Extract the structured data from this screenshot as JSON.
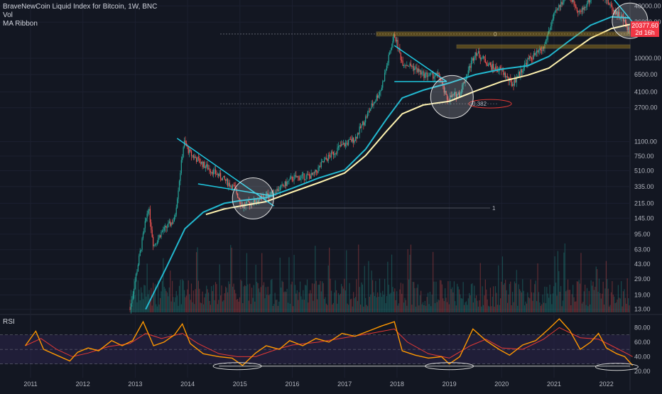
{
  "legend": {
    "symbol": "BraveNewCoin Liquid Index for Bitcoin, 1W, BNC",
    "volume": "Vol",
    "ma_ribbon": "MA Ribbon"
  },
  "rsi_panel": {
    "label": "RSI"
  },
  "last_price": {
    "value": "20377.60",
    "countdown": "2d 16h"
  },
  "colors": {
    "background": "#131722",
    "up_candle": "#26a69a",
    "down_candle": "#ef5350",
    "ma_fast": "#22b8cf",
    "ma_slow": "#fff3b0",
    "rsi_line": "#ff9800",
    "rsi_ma": "#e53935",
    "rsi_band": "#2a2348",
    "fib_line": "#b2b5be",
    "triangle": "#1fc8e0",
    "price_tag": "#f23645"
  },
  "annotations": {
    "fib_labels": [
      "0",
      "0.382",
      "1"
    ],
    "highlight_circles": 4,
    "rsi_circles": 3
  },
  "chart_data": {
    "type": "candlestick",
    "title": "BraveNewCoin Liquid Index for Bitcoin, 1W, BNC",
    "scale": "log",
    "x_ticks": [
      "2011",
      "2012",
      "2013",
      "2014",
      "2015",
      "2016",
      "2017",
      "2018",
      "2019",
      "2020",
      "2021",
      "2022"
    ],
    "y_ticks": [
      "40000.00",
      "26000.00",
      "10000.00",
      "6500.00",
      "4100.00",
      "2700.00",
      "1100.00",
      "750.00",
      "510.00",
      "335.00",
      "215.00",
      "145.00",
      "95.00",
      "63.00",
      "43.00",
      "29.00",
      "19.00",
      "13.00"
    ],
    "ylim": [
      12,
      45000
    ],
    "rsi_ticks": [
      "80.00",
      "60.00",
      "40.00",
      "20.00"
    ],
    "rsi_range": [
      15,
      95
    ],
    "rsi_band": [
      30,
      70
    ],
    "price_path": [
      [
        2012.9,
        13
      ],
      [
        2013.25,
        200
      ],
      [
        2013.35,
        70
      ],
      [
        2013.5,
        100
      ],
      [
        2013.75,
        140
      ],
      [
        2013.93,
        1100
      ],
      [
        2014.05,
        800
      ],
      [
        2014.3,
        600
      ],
      [
        2014.6,
        450
      ],
      [
        2014.9,
        320
      ],
      [
        2015.05,
        200
      ],
      [
        2015.5,
        260
      ],
      [
        2015.8,
        330
      ],
      [
        2016.0,
        420
      ],
      [
        2016.4,
        450
      ],
      [
        2016.6,
        650
      ],
      [
        2016.9,
        950
      ],
      [
        2017.2,
        1200
      ],
      [
        2017.5,
        2700
      ],
      [
        2017.7,
        4500
      ],
      [
        2017.95,
        19000
      ],
      [
        2018.1,
        9000
      ],
      [
        2018.3,
        8000
      ],
      [
        2018.5,
        6500
      ],
      [
        2018.8,
        6300
      ],
      [
        2018.95,
        3400
      ],
      [
        2019.2,
        4000
      ],
      [
        2019.5,
        12000
      ],
      [
        2019.8,
        8000
      ],
      [
        2020.0,
        7200
      ],
      [
        2020.2,
        5000
      ],
      [
        2020.5,
        9500
      ],
      [
        2020.8,
        13000
      ],
      [
        2020.98,
        29000
      ],
      [
        2021.25,
        58000
      ],
      [
        2021.5,
        33000
      ],
      [
        2021.85,
        66000
      ],
      [
        2022.1,
        38000
      ],
      [
        2022.3,
        29000
      ],
      [
        2022.45,
        20377
      ]
    ],
    "ma_fast": [
      [
        2013.2,
        13
      ],
      [
        2013.6,
        40
      ],
      [
        2013.95,
        110
      ],
      [
        2014.3,
        170
      ],
      [
        2014.7,
        215
      ],
      [
        2015.0,
        230
      ],
      [
        2015.5,
        250
      ],
      [
        2016.0,
        320
      ],
      [
        2016.5,
        420
      ],
      [
        2017.0,
        520
      ],
      [
        2017.4,
        900
      ],
      [
        2017.8,
        2000
      ],
      [
        2018.1,
        3500
      ],
      [
        2018.5,
        4300
      ],
      [
        2019.0,
        5200
      ],
      [
        2019.5,
        6500
      ],
      [
        2020.0,
        7500
      ],
      [
        2020.5,
        8200
      ],
      [
        2020.9,
        10500
      ],
      [
        2021.3,
        16000
      ],
      [
        2021.7,
        24000
      ],
      [
        2022.1,
        30000
      ],
      [
        2022.45,
        29000
      ]
    ],
    "ma_slow": [
      [
        2014.35,
        160
      ],
      [
        2014.7,
        185
      ],
      [
        2015.0,
        200
      ],
      [
        2015.5,
        225
      ],
      [
        2016.0,
        290
      ],
      [
        2016.5,
        370
      ],
      [
        2017.0,
        480
      ],
      [
        2017.4,
        760
      ],
      [
        2017.8,
        1450
      ],
      [
        2018.1,
        2300
      ],
      [
        2018.5,
        2900
      ],
      [
        2019.0,
        3200
      ],
      [
        2019.5,
        4200
      ],
      [
        2020.0,
        5400
      ],
      [
        2020.5,
        6400
      ],
      [
        2020.9,
        7700
      ],
      [
        2021.3,
        11500
      ],
      [
        2021.7,
        17000
      ],
      [
        2022.1,
        22000
      ],
      [
        2022.45,
        24500
      ]
    ],
    "rsi": [
      [
        2010.9,
        55
      ],
      [
        2011.1,
        75
      ],
      [
        2011.25,
        50
      ],
      [
        2011.5,
        42
      ],
      [
        2011.75,
        34
      ],
      [
        2011.9,
        46
      ],
      [
        2012.1,
        52
      ],
      [
        2012.3,
        48
      ],
      [
        2012.55,
        62
      ],
      [
        2012.75,
        55
      ],
      [
        2012.95,
        62
      ],
      [
        2013.15,
        88
      ],
      [
        2013.35,
        55
      ],
      [
        2013.55,
        60
      ],
      [
        2013.75,
        70
      ],
      [
        2013.9,
        85
      ],
      [
        2014.05,
        58
      ],
      [
        2014.3,
        44
      ],
      [
        2014.6,
        40
      ],
      [
        2014.85,
        38
      ],
      [
        2015.05,
        28
      ],
      [
        2015.3,
        45
      ],
      [
        2015.5,
        55
      ],
      [
        2015.75,
        50
      ],
      [
        2015.95,
        62
      ],
      [
        2016.2,
        55
      ],
      [
        2016.45,
        65
      ],
      [
        2016.7,
        60
      ],
      [
        2016.95,
        72
      ],
      [
        2017.2,
        68
      ],
      [
        2017.45,
        75
      ],
      [
        2017.7,
        82
      ],
      [
        2017.95,
        88
      ],
      [
        2018.1,
        48
      ],
      [
        2018.35,
        42
      ],
      [
        2018.6,
        38
      ],
      [
        2018.85,
        40
      ],
      [
        2019.0,
        30
      ],
      [
        2019.2,
        40
      ],
      [
        2019.45,
        78
      ],
      [
        2019.7,
        62
      ],
      [
        2019.95,
        50
      ],
      [
        2020.15,
        42
      ],
      [
        2020.4,
        56
      ],
      [
        2020.65,
        62
      ],
      [
        2020.9,
        78
      ],
      [
        2021.1,
        92
      ],
      [
        2021.3,
        76
      ],
      [
        2021.5,
        50
      ],
      [
        2021.7,
        60
      ],
      [
        2021.85,
        72
      ],
      [
        2022.0,
        52
      ],
      [
        2022.2,
        44
      ],
      [
        2022.35,
        40
      ],
      [
        2022.5,
        28
      ]
    ],
    "rsi_ma": [
      [
        2010.9,
        55
      ],
      [
        2011.2,
        65
      ],
      [
        2011.5,
        50
      ],
      [
        2011.8,
        40
      ],
      [
        2012.1,
        45
      ],
      [
        2012.5,
        54
      ],
      [
        2012.9,
        58
      ],
      [
        2013.2,
        72
      ],
      [
        2013.5,
        65
      ],
      [
        2013.9,
        72
      ],
      [
        2014.2,
        58
      ],
      [
        2014.6,
        44
      ],
      [
        2014.95,
        40
      ],
      [
        2015.3,
        40
      ],
      [
        2015.7,
        50
      ],
      [
        2016.0,
        56
      ],
      [
        2016.5,
        60
      ],
      [
        2017.0,
        66
      ],
      [
        2017.5,
        72
      ],
      [
        2017.95,
        78
      ],
      [
        2018.2,
        60
      ],
      [
        2018.6,
        44
      ],
      [
        2019.0,
        38
      ],
      [
        2019.4,
        55
      ],
      [
        2019.7,
        64
      ],
      [
        2020.0,
        52
      ],
      [
        2020.4,
        50
      ],
      [
        2020.8,
        64
      ],
      [
        2021.1,
        80
      ],
      [
        2021.5,
        66
      ],
      [
        2021.85,
        64
      ],
      [
        2022.1,
        55
      ],
      [
        2022.4,
        44
      ],
      [
        2022.5,
        40
      ]
    ]
  }
}
